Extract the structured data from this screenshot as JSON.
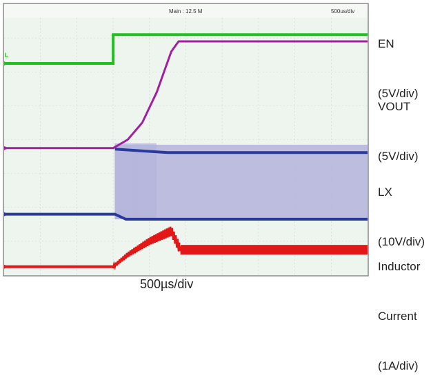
{
  "header": {
    "main_readout": "Main : 12.5 M",
    "timebase_readout": "500us/div"
  },
  "trigger_marker": "L",
  "channel_labels": [
    {
      "line1": "EN",
      "line2": "(5V/div)"
    },
    {
      "line1": "VOUT",
      "line2": "(5V/div)"
    },
    {
      "line1": "LX",
      "line2": "(10V/div)"
    },
    {
      "line1": "Inductor",
      "line2": "Current",
      "line3": "(1A/div)"
    }
  ],
  "time_caption": "500µs/div",
  "colors": {
    "background": "#eef4ee",
    "grid": "#c8d6c8",
    "en": "#22c022",
    "vout": "#a020a0",
    "lx": "#2a3a9c",
    "lx_envelope": "#b4b4dc",
    "current": "#e21818"
  },
  "chart_data": {
    "type": "line",
    "x_unit": "div",
    "y_unit": "div",
    "grid": true,
    "xlim": [
      0,
      10
    ],
    "ylim": [
      0,
      8
    ],
    "series": [
      {
        "name": "EN",
        "points": [
          [
            0,
            6.25
          ],
          [
            3.0,
            6.25
          ],
          [
            3.0,
            7.1
          ],
          [
            10,
            7.1
          ]
        ]
      },
      {
        "name": "VOUT",
        "points": [
          [
            0,
            3.75
          ],
          [
            3.0,
            3.75
          ],
          [
            3.4,
            4.0
          ],
          [
            3.8,
            4.5
          ],
          [
            4.2,
            5.4
          ],
          [
            4.6,
            6.6
          ],
          [
            4.8,
            6.9
          ],
          [
            10,
            6.9
          ]
        ]
      },
      {
        "name": "LX",
        "points": [
          [
            0,
            1.8
          ],
          [
            3.05,
            1.8
          ],
          [
            3.35,
            1.65
          ],
          [
            10,
            1.65
          ]
        ],
        "switching_envelope": {
          "x_start": 3.05,
          "x_end": 10,
          "low": 1.65,
          "high": 3.85
        },
        "upper_level": [
          [
            3.05,
            3.72
          ],
          [
            4.5,
            3.62
          ],
          [
            10,
            3.62
          ]
        ]
      },
      {
        "name": "Inductor Current",
        "points": [
          [
            0,
            0.25
          ],
          [
            3.0,
            0.25
          ],
          [
            3.4,
            0.6
          ],
          [
            4.0,
            1.0
          ],
          [
            4.6,
            1.3
          ],
          [
            4.85,
            0.75
          ],
          [
            10,
            0.75
          ]
        ]
      }
    ]
  }
}
